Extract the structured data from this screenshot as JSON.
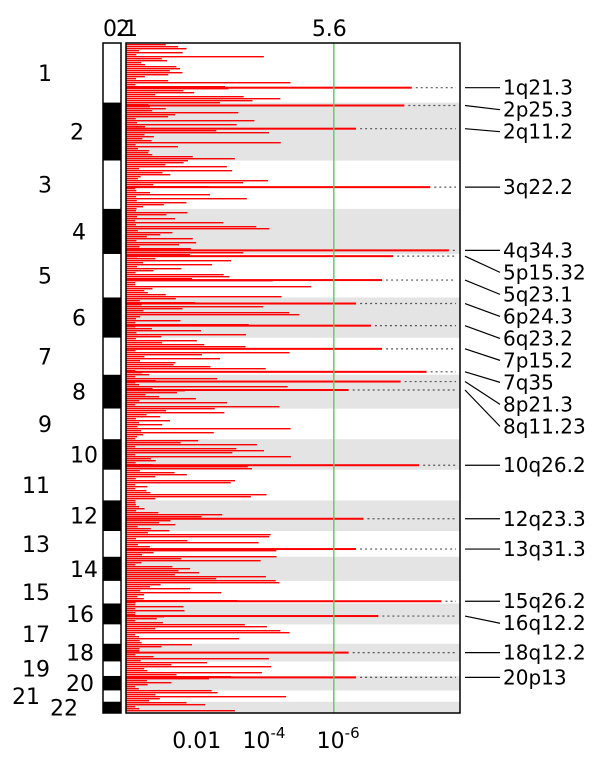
{
  "chart_data": {
    "type": "bar",
    "orientation": "horizontal",
    "top_ticks": [
      {
        "label": "0.1",
        "value": 0.0
      },
      {
        "label": "2",
        "value": 0.06
      },
      {
        "label": "5.6",
        "value": 5.6
      }
    ],
    "bottom_ticks": [
      {
        "label": "0.01",
        "value": 2
      },
      {
        "label": "10^-4",
        "base": "10",
        "exp": "-4",
        "value": 4
      },
      {
        "label": "10^-6",
        "base": "10",
        "exp": "-6",
        "value": 6
      }
    ],
    "xlim": [
      0,
      9
    ],
    "threshold_line": {
      "label": "5.6",
      "value": 5.6,
      "color": "#66cc66"
    },
    "bar_color": "#ff0000",
    "band_color": "#e4e4e4",
    "chromosomes": [
      {
        "label": "1",
        "size": 37,
        "shaded": false
      },
      {
        "label": "2",
        "size": 36,
        "shaded": true
      },
      {
        "label": "3",
        "size": 30,
        "shaded": false
      },
      {
        "label": "4",
        "size": 28,
        "shaded": true
      },
      {
        "label": "5",
        "size": 27,
        "shaded": false
      },
      {
        "label": "6",
        "size": 25,
        "shaded": true
      },
      {
        "label": "7",
        "size": 23,
        "shaded": false
      },
      {
        "label": "8",
        "size": 21,
        "shaded": true
      },
      {
        "label": "9",
        "size": 19,
        "shaded": false
      },
      {
        "label": "10",
        "size": 19,
        "shaded": true
      },
      {
        "label": "11",
        "size": 19,
        "shaded": false
      },
      {
        "label": "12",
        "size": 19,
        "shaded": true
      },
      {
        "label": "13",
        "size": 16,
        "shaded": false
      },
      {
        "label": "14",
        "size": 15,
        "shaded": true
      },
      {
        "label": "15",
        "size": 14,
        "shaded": false
      },
      {
        "label": "16",
        "size": 13,
        "shaded": true
      },
      {
        "label": "17",
        "size": 12,
        "shaded": false
      },
      {
        "label": "18",
        "size": 11,
        "shaded": true
      },
      {
        "label": "19",
        "size": 9,
        "shaded": false
      },
      {
        "label": "20",
        "size": 9,
        "shaded": true
      },
      {
        "label": "21",
        "size": 7,
        "shaded": false
      },
      {
        "label": "22",
        "size": 7,
        "shaded": true
      }
    ],
    "peaks": [
      {
        "label": "1q21.3",
        "chrom": "1",
        "pos": 0.75,
        "value": 7.7
      },
      {
        "label": "2p25.3",
        "chrom": "2",
        "pos": 0.05,
        "value": 7.5
      },
      {
        "label": "2q11.2",
        "chrom": "2",
        "pos": 0.45,
        "value": 6.2
      },
      {
        "label": "3q22.2",
        "chrom": "3",
        "pos": 0.55,
        "value": 8.2
      },
      {
        "label": "4q34.3",
        "chrom": "4",
        "pos": 0.92,
        "value": 8.7
      },
      {
        "label": "5p15.32",
        "chrom": "5",
        "pos": 0.05,
        "value": 7.2
      },
      {
        "label": "5q23.1",
        "chrom": "5",
        "pos": 0.6,
        "value": 6.9
      },
      {
        "label": "6p24.3",
        "chrom": "6",
        "pos": 0.15,
        "value": 6.2
      },
      {
        "label": "6q23.2",
        "chrom": "6",
        "pos": 0.7,
        "value": 6.6
      },
      {
        "label": "7p15.2",
        "chrom": "7",
        "pos": 0.3,
        "value": 6.9
      },
      {
        "label": "7q35",
        "chrom": "7",
        "pos": 0.92,
        "value": 8.1
      },
      {
        "label": "8p21.3",
        "chrom": "8",
        "pos": 0.2,
        "value": 7.4
      },
      {
        "label": "8q11.23",
        "chrom": "8",
        "pos": 0.45,
        "value": 6.0
      },
      {
        "label": "10q26.2",
        "chrom": "10",
        "pos": 0.85,
        "value": 7.9
      },
      {
        "label": "12q23.3",
        "chrom": "12",
        "pos": 0.6,
        "value": 6.4
      },
      {
        "label": "13q31.3",
        "chrom": "13",
        "pos": 0.7,
        "value": 6.2
      },
      {
        "label": "15q26.2",
        "chrom": "15",
        "pos": 0.9,
        "value": 8.5
      },
      {
        "label": "16q12.2",
        "chrom": "16",
        "pos": 0.6,
        "value": 6.8
      },
      {
        "label": "18q12.2",
        "chrom": "18",
        "pos": 0.5,
        "value": 6.0
      },
      {
        "label": "20p13",
        "chrom": "20",
        "pos": 0.1,
        "value": 6.2
      }
    ]
  }
}
